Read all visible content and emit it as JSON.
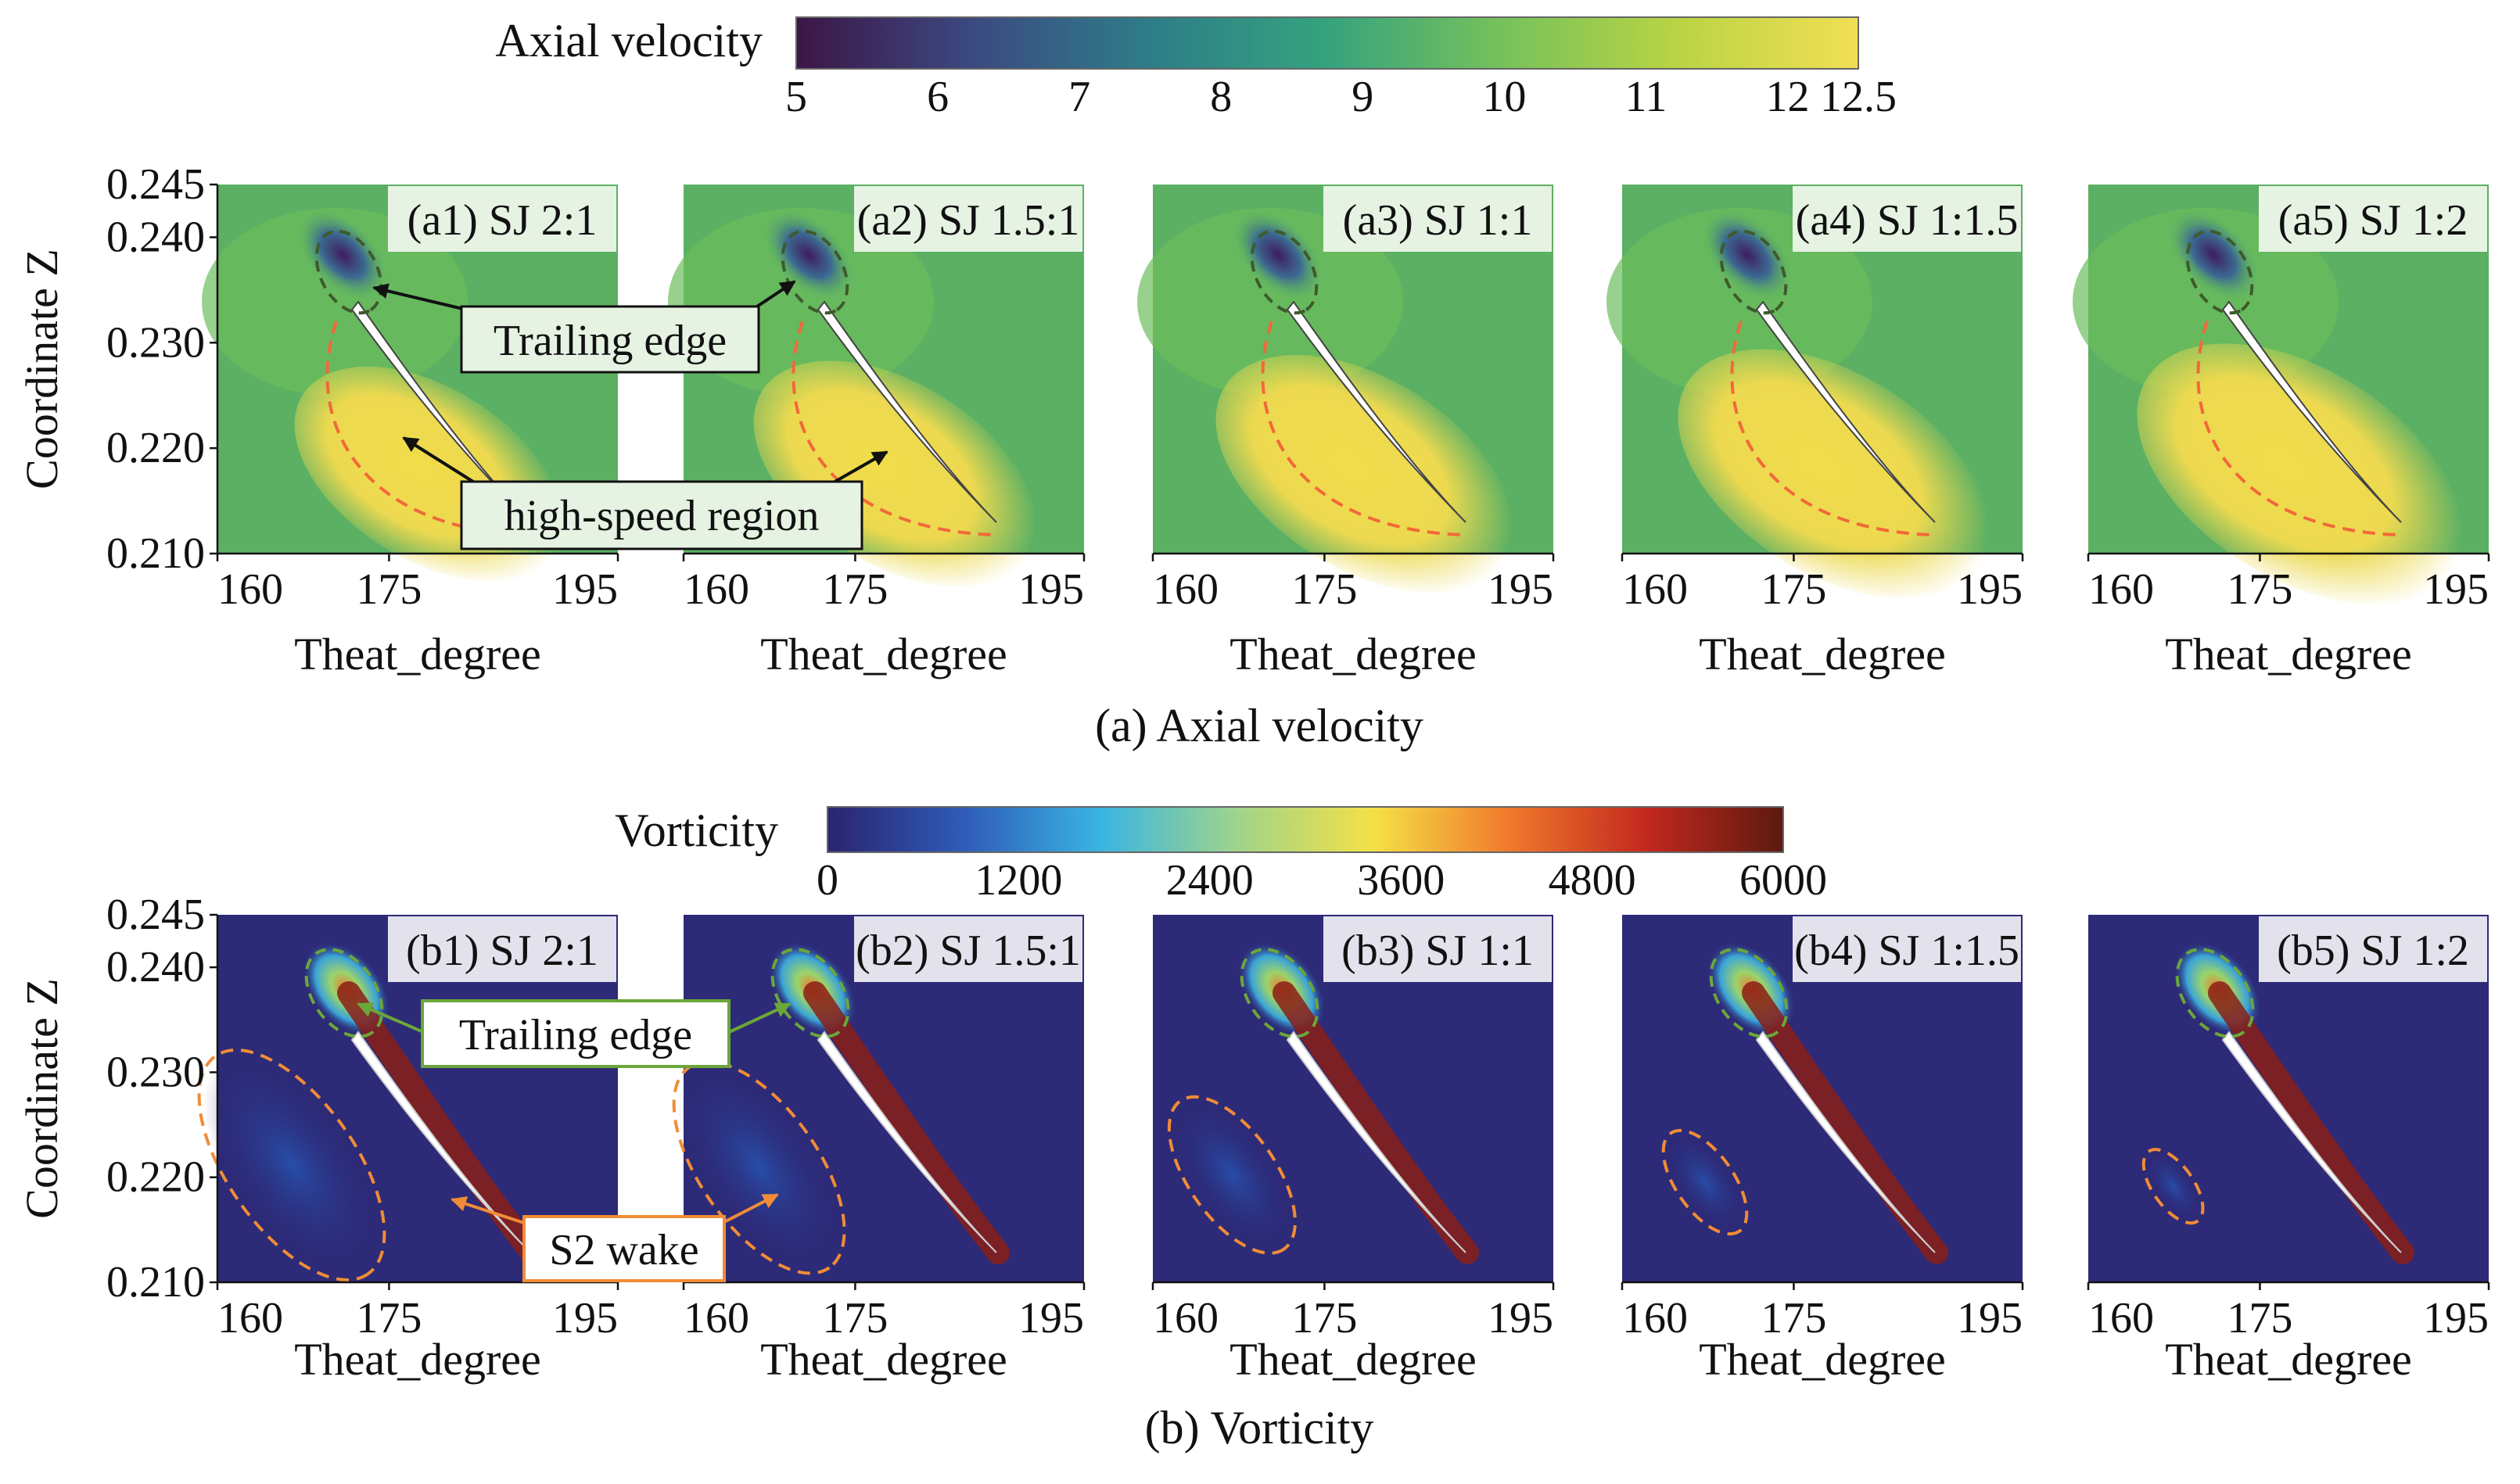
{
  "axial": {
    "colorbar": {
      "title": "Axial velocity",
      "ticks": [
        "5",
        "6",
        "7",
        "8",
        "9",
        "10",
        "11",
        "12",
        "12.5"
      ],
      "tick_values": [
        5,
        6,
        7,
        8,
        9,
        10,
        11,
        12,
        12.5
      ],
      "range": [
        5,
        12.5
      ],
      "stops": [
        "#3d1546",
        "#3b4a82",
        "#2e7d88",
        "#35a37e",
        "#77c25a",
        "#bbd444",
        "#f1df55"
      ]
    },
    "panels": [
      {
        "label": "(a1) SJ 2:1"
      },
      {
        "label": "(a2) SJ 1.5:1"
      },
      {
        "label": "(a3) SJ 1:1"
      },
      {
        "label": "(a4) SJ 1:1.5"
      },
      {
        "label": "(a5) SJ 1:2"
      }
    ],
    "annotations": {
      "trailing_edge": "Trailing edge",
      "high_speed": "high-speed region"
    },
    "caption": "(a) Axial velocity"
  },
  "vorticity": {
    "colorbar": {
      "title": "Vorticity",
      "ticks": [
        "0",
        "1200",
        "2400",
        "3600",
        "4800",
        "6000"
      ],
      "tick_values": [
        0,
        1200,
        2400,
        3600,
        4800,
        6000
      ],
      "range": [
        0,
        6000
      ],
      "stops": [
        "#2a2470",
        "#2f5bb8",
        "#39b5e2",
        "#9fd48a",
        "#f4e146",
        "#f0792c",
        "#c2281e",
        "#5c1a10"
      ]
    },
    "panels": [
      {
        "label": "(b1) SJ 2:1",
        "wake_scale": 1.0
      },
      {
        "label": "(b2) SJ 1.5:1",
        "wake_scale": 0.92
      },
      {
        "label": "(b3) SJ 1:1",
        "wake_scale": 0.68
      },
      {
        "label": "(b4) SJ 1:1.5",
        "wake_scale": 0.45
      },
      {
        "label": "(b5) SJ 1:2",
        "wake_scale": 0.32
      }
    ],
    "annotations": {
      "trailing_edge": "Trailing edge",
      "s2_wake": "S2 wake"
    },
    "caption": "(b) Vorticity"
  },
  "axes": {
    "ylabel": "Coordinate Z",
    "xlabel": "Theat_degree",
    "yticks": [
      "0.245",
      "0.240",
      "0.230",
      "0.220",
      "0.210"
    ],
    "xticks": [
      "160",
      "175",
      "195"
    ]
  },
  "colors": {
    "field_green": "#5bb063",
    "field_yellow": "#f0db4d",
    "vort_bg": "#2d2a78",
    "blade": "#ffffff",
    "high_speed_line": "#f2683a",
    "te_circle_a": "#3d5b2c",
    "te_circle_b": "#6ba63a",
    "wake_line": "#f08c37",
    "label_bg_a": "#e6f3e3",
    "label_bg_b": "#e3e1ec"
  }
}
